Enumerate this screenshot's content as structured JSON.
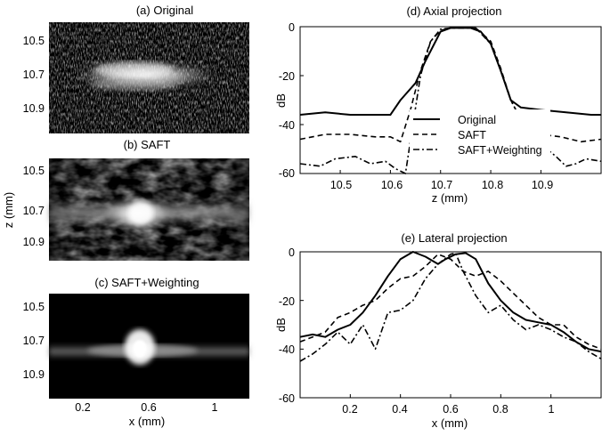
{
  "colors": {
    "background": "#ffffff",
    "ink": "#000000",
    "image_bg": "#000000"
  },
  "chart_data": [
    {
      "type": "heatmap",
      "title": "(a) Original",
      "ylabel": "",
      "xlabel": "",
      "yticks": [
        "10.5",
        "10.7",
        "10.9"
      ],
      "ytick_values": [
        10.5,
        10.7,
        10.9
      ],
      "ylim": [
        10.42,
        11.0
      ],
      "xlim": [
        0.0,
        1.2
      ],
      "colormap": "gray",
      "background": "speckle"
    },
    {
      "type": "heatmap",
      "title": "(b) SAFT",
      "ylabel": "z (mm)",
      "xlabel": "",
      "yticks": [
        "10.5",
        "10.7",
        "10.9"
      ],
      "ytick_values": [
        10.5,
        10.7,
        10.9
      ],
      "ylim": [
        10.42,
        11.0
      ],
      "xlim": [
        0.0,
        1.2
      ],
      "colormap": "gray",
      "background": "smooth"
    },
    {
      "type": "heatmap",
      "title": "(c) SAFT+Weighting",
      "ylabel": "",
      "xlabel": "x (mm)",
      "yticks": [
        "10.5",
        "10.7",
        "10.9"
      ],
      "ytick_values": [
        10.5,
        10.7,
        10.9
      ],
      "xticks": [
        "0.2",
        "0.6",
        "1"
      ],
      "xtick_values": [
        0.2,
        0.6,
        1.0
      ],
      "ylim": [
        10.42,
        11.0
      ],
      "xlim": [
        0.0,
        1.2
      ],
      "colormap": "gray",
      "background": "dark"
    },
    {
      "type": "line",
      "title": "(d) Axial projection",
      "xlabel": "z (mm)",
      "ylabel": "dB",
      "xlim": [
        10.42,
        11.02
      ],
      "ylim": [
        -60,
        0
      ],
      "xticks": [
        "10.5",
        "10.6",
        "10.7",
        "10.8",
        "10.9"
      ],
      "xtick_values": [
        10.5,
        10.6,
        10.7,
        10.8,
        10.9
      ],
      "yticks": [
        "0",
        "-20",
        "-40",
        "-60"
      ],
      "ytick_values": [
        0,
        -20,
        -40,
        -60
      ],
      "legend": "right",
      "series": [
        {
          "name": "Original",
          "style": "solid",
          "points": [
            [
              10.42,
              -36
            ],
            [
              10.47,
              -35
            ],
            [
              10.52,
              -36
            ],
            [
              10.57,
              -36
            ],
            [
              10.6,
              -36
            ],
            [
              10.62,
              -30
            ],
            [
              10.65,
              -23
            ],
            [
              10.67,
              -14
            ],
            [
              10.69,
              -6
            ],
            [
              10.7,
              -2
            ],
            [
              10.72,
              -0.5
            ],
            [
              10.76,
              -0.5
            ],
            [
              10.78,
              -2
            ],
            [
              10.8,
              -7
            ],
            [
              10.82,
              -18
            ],
            [
              10.84,
              -30
            ],
            [
              10.86,
              -33
            ],
            [
              10.9,
              -34
            ],
            [
              10.95,
              -35
            ],
            [
              11.0,
              -36
            ],
            [
              11.02,
              -36
            ]
          ]
        },
        {
          "name": "SAFT",
          "style": "dash",
          "points": [
            [
              10.42,
              -46
            ],
            [
              10.47,
              -44
            ],
            [
              10.52,
              -44
            ],
            [
              10.57,
              -45
            ],
            [
              10.6,
              -45
            ],
            [
              10.62,
              -47
            ],
            [
              10.64,
              -34
            ],
            [
              10.66,
              -18
            ],
            [
              10.68,
              -6
            ],
            [
              10.7,
              -1.5
            ],
            [
              10.72,
              -0.5
            ],
            [
              10.77,
              -0.5
            ],
            [
              10.8,
              -6
            ],
            [
              10.82,
              -17
            ],
            [
              10.84,
              -30
            ],
            [
              10.86,
              -38
            ],
            [
              10.88,
              -42
            ],
            [
              10.9,
              -44
            ],
            [
              10.94,
              -45
            ],
            [
              10.98,
              -47
            ],
            [
              11.02,
              -46
            ]
          ]
        },
        {
          "name": "SAFT+Weighting",
          "style": "dashdot",
          "points": [
            [
              10.42,
              -56
            ],
            [
              10.46,
              -57
            ],
            [
              10.49,
              -54
            ],
            [
              10.53,
              -53
            ],
            [
              10.56,
              -56
            ],
            [
              10.59,
              -55
            ],
            [
              10.61,
              -58
            ],
            [
              10.63,
              -60
            ],
            [
              10.645,
              -40
            ],
            [
              10.66,
              -20
            ],
            [
              10.68,
              -6
            ],
            [
              10.7,
              -1
            ],
            [
              10.72,
              -0.5
            ],
            [
              10.77,
              -0.5
            ],
            [
              10.8,
              -7
            ],
            [
              10.82,
              -18
            ],
            [
              10.84,
              -30
            ],
            [
              10.86,
              -38
            ],
            [
              10.88,
              -44
            ],
            [
              10.9,
              -48
            ],
            [
              10.93,
              -53
            ],
            [
              10.95,
              -57
            ],
            [
              10.97,
              -56
            ],
            [
              10.99,
              -54
            ],
            [
              11.02,
              -55
            ]
          ]
        }
      ]
    },
    {
      "type": "line",
      "title": "(e) Lateral projection",
      "xlabel": "x (mm)",
      "ylabel": "dB",
      "xlim": [
        0.0,
        1.2
      ],
      "ylim": [
        -60,
        0
      ],
      "xticks": [
        "0.2",
        "0.4",
        "0.6",
        "0.8",
        "1"
      ],
      "xtick_values": [
        0.2,
        0.4,
        0.6,
        0.8,
        1.0
      ],
      "yticks": [
        "0",
        "-20",
        "-40",
        "-60"
      ],
      "ytick_values": [
        0,
        -20,
        -40,
        -60
      ],
      "series": [
        {
          "name": "Original",
          "style": "solid",
          "points": [
            [
              0.0,
              -35
            ],
            [
              0.05,
              -34
            ],
            [
              0.1,
              -35
            ],
            [
              0.15,
              -32
            ],
            [
              0.2,
              -30
            ],
            [
              0.25,
              -25
            ],
            [
              0.3,
              -18
            ],
            [
              0.35,
              -10
            ],
            [
              0.4,
              -3
            ],
            [
              0.45,
              0
            ],
            [
              0.5,
              -2
            ],
            [
              0.55,
              -5
            ],
            [
              0.58,
              -3
            ],
            [
              0.62,
              -1
            ],
            [
              0.66,
              -0.5
            ],
            [
              0.7,
              -3
            ],
            [
              0.75,
              -13
            ],
            [
              0.8,
              -20
            ],
            [
              0.85,
              -25
            ],
            [
              0.9,
              -28
            ],
            [
              0.95,
              -29
            ],
            [
              1.0,
              -30
            ],
            [
              1.05,
              -33
            ],
            [
              1.1,
              -37
            ],
            [
              1.15,
              -40
            ],
            [
              1.2,
              -41
            ]
          ]
        },
        {
          "name": "SAFT",
          "style": "dash",
          "points": [
            [
              0.0,
              -37
            ],
            [
              0.05,
              -35
            ],
            [
              0.1,
              -33
            ],
            [
              0.15,
              -27
            ],
            [
              0.2,
              -25
            ],
            [
              0.25,
              -22
            ],
            [
              0.3,
              -20
            ],
            [
              0.35,
              -15
            ],
            [
              0.4,
              -11
            ],
            [
              0.45,
              -10
            ],
            [
              0.5,
              -6
            ],
            [
              0.55,
              -1
            ],
            [
              0.6,
              -3
            ],
            [
              0.65,
              -8
            ],
            [
              0.7,
              -10
            ],
            [
              0.75,
              -8
            ],
            [
              0.8,
              -12
            ],
            [
              0.85,
              -17
            ],
            [
              0.9,
              -22
            ],
            [
              0.95,
              -27
            ],
            [
              1.0,
              -30
            ],
            [
              1.05,
              -30
            ],
            [
              1.1,
              -35
            ],
            [
              1.15,
              -38
            ],
            [
              1.2,
              -40
            ]
          ]
        },
        {
          "name": "SAFT+Weighting",
          "style": "dashdot",
          "points": [
            [
              0.0,
              -45
            ],
            [
              0.05,
              -42
            ],
            [
              0.1,
              -38
            ],
            [
              0.15,
              -33
            ],
            [
              0.2,
              -38
            ],
            [
              0.25,
              -30
            ],
            [
              0.3,
              -40
            ],
            [
              0.35,
              -25
            ],
            [
              0.4,
              -24
            ],
            [
              0.45,
              -20
            ],
            [
              0.5,
              -11
            ],
            [
              0.55,
              -5
            ],
            [
              0.6,
              -1
            ],
            [
              0.62,
              -0.5
            ],
            [
              0.65,
              -8
            ],
            [
              0.7,
              -18
            ],
            [
              0.75,
              -25
            ],
            [
              0.8,
              -22
            ],
            [
              0.85,
              -28
            ],
            [
              0.9,
              -32
            ],
            [
              0.95,
              -30
            ],
            [
              1.0,
              -32
            ],
            [
              1.05,
              -35
            ],
            [
              1.1,
              -37
            ],
            [
              1.15,
              -41
            ],
            [
              1.2,
              -44
            ]
          ]
        }
      ]
    }
  ]
}
